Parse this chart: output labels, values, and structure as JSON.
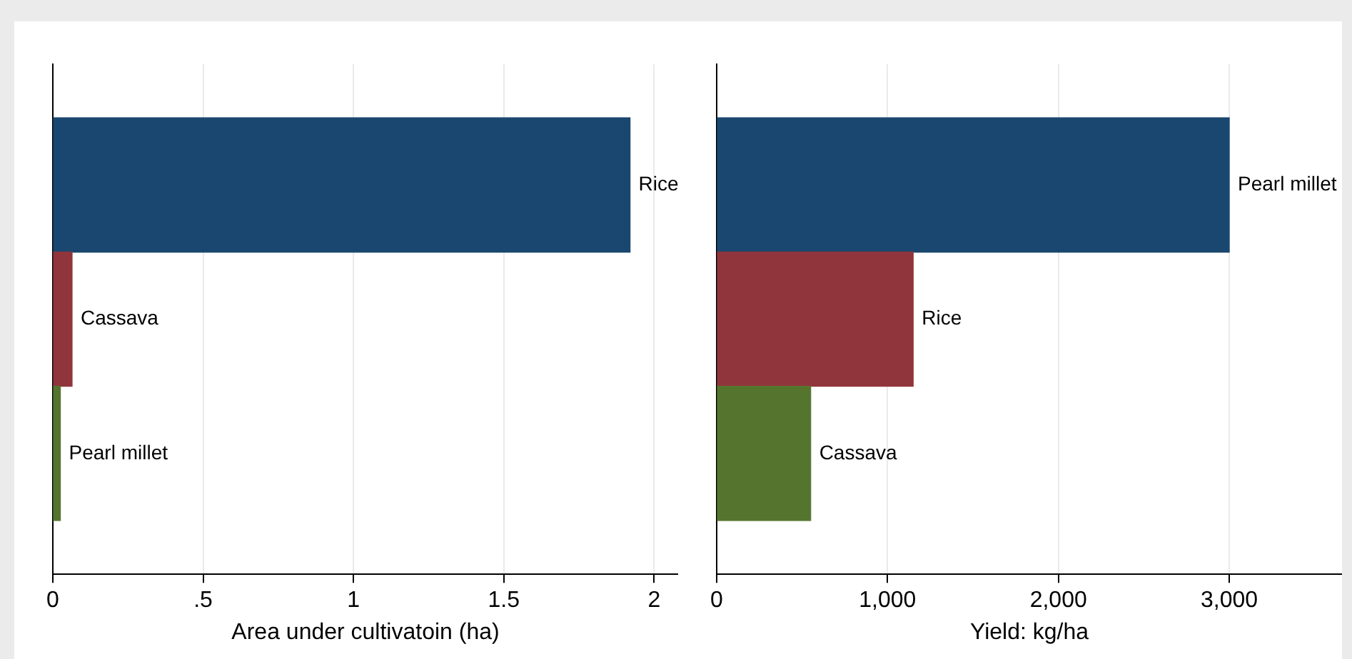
{
  "chart_data": [
    {
      "type": "bar",
      "orientation": "horizontal",
      "categories": [
        "Rice",
        "Cassava",
        "Pearl millet"
      ],
      "values": [
        1.92,
        0.064,
        0.025
      ],
      "colors": [
        "#1a476f",
        "#90353b",
        "#55752f"
      ],
      "xlim": [
        0,
        2.08
      ],
      "xticks": [
        0,
        {
          "value": 0.5,
          "label": ".5"
        },
        1,
        {
          "value": 1.5,
          "label": "1.5"
        },
        2
      ],
      "xlabel": "Area under cultivatoin (ha)",
      "grid": "x",
      "tick_labels": "x"
    },
    {
      "type": "bar",
      "orientation": "horizontal",
      "categories": [
        "Pearl millet",
        "Rice",
        "Cassava"
      ],
      "values": [
        3000,
        1150,
        550
      ],
      "colors": [
        "#1a476f",
        "#90353b",
        "#55752f"
      ],
      "xlim": [
        0,
        3660
      ],
      "xticks": [
        0,
        {
          "value": 1000,
          "label": "1,000"
        },
        {
          "value": 2000,
          "label": "2,000"
        },
        {
          "value": 3000,
          "label": "3,000"
        }
      ],
      "xlabel": "Yield: kg/ha",
      "grid": "x",
      "tick_labels": "x"
    }
  ]
}
